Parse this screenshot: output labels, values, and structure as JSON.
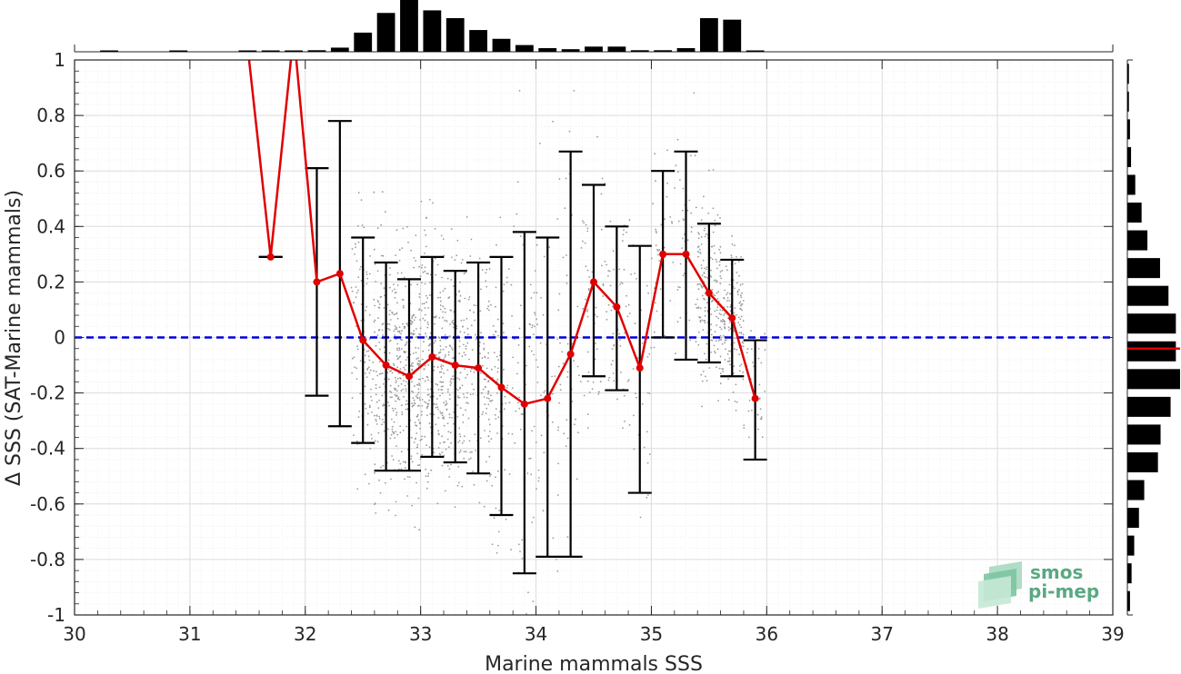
{
  "chart_data": {
    "type": "scatter",
    "title": "",
    "xlabel": "Marine mammals SSS",
    "ylabel": "Δ SSS (SAT-Marine mammals)",
    "xlim": [
      30,
      39
    ],
    "ylim": [
      -1,
      1
    ],
    "x_ticks": [
      "30",
      "31",
      "32",
      "33",
      "34",
      "35",
      "36",
      "37",
      "38",
      "39"
    ],
    "y_ticks": [
      "-1",
      "-0.8",
      "-0.6",
      "-0.4",
      "-0.2",
      "0",
      "0.2",
      "0.4",
      "0.6",
      "0.8",
      "1"
    ],
    "grid": true,
    "minor_grid": true,
    "reference_line": {
      "y": 0,
      "style": "dashed",
      "color": "#0000dd"
    },
    "colors": {
      "mean_line": "#e00000",
      "error_bars": "#000000",
      "scatter": "#9a9a9a",
      "histogram": "#000000",
      "logo": "#5aa882"
    },
    "series": [
      {
        "type": "line-errorbar",
        "x": [
          31.5,
          31.7,
          31.9,
          32.1,
          32.3,
          32.5,
          32.7,
          32.9,
          33.1,
          33.3,
          33.5,
          33.7,
          33.9,
          34.1,
          34.3,
          34.5,
          34.7,
          34.9,
          35.1,
          35.3,
          35.5,
          35.7,
          35.9
        ],
        "y": [
          1.05,
          0.29,
          1.1,
          0.2,
          0.23,
          -0.01,
          -0.1,
          -0.14,
          -0.07,
          -0.1,
          -0.11,
          -0.18,
          -0.24,
          -0.22,
          -0.06,
          0.2,
          0.11,
          -0.11,
          0.3,
          0.3,
          0.16,
          0.07,
          -0.22
        ],
        "y_low": [
          null,
          0.29,
          null,
          -0.21,
          -0.32,
          -0.38,
          -0.48,
          -0.48,
          -0.43,
          -0.45,
          -0.49,
          -0.64,
          -0.85,
          -0.79,
          -0.79,
          -0.14,
          -0.19,
          -0.56,
          0.0,
          -0.08,
          -0.09,
          -0.14,
          -0.44
        ],
        "y_high": [
          null,
          0.29,
          null,
          0.61,
          0.78,
          0.36,
          0.27,
          0.21,
          0.29,
          0.24,
          0.27,
          0.29,
          0.38,
          0.36,
          0.67,
          0.55,
          0.4,
          0.33,
          0.6,
          0.67,
          0.41,
          0.28,
          -0.01
        ]
      }
    ],
    "x_histogram": {
      "bin_centers": [
        30.3,
        30.9,
        31.5,
        31.7,
        31.9,
        32.1,
        32.3,
        32.5,
        32.7,
        32.9,
        33.1,
        33.3,
        33.5,
        33.7,
        33.9,
        34.1,
        34.3,
        34.5,
        34.7,
        34.9,
        35.1,
        35.3,
        35.5,
        35.7,
        35.9
      ],
      "relative_heights": [
        0.02,
        0.01,
        0.02,
        0.02,
        0.02,
        0.03,
        0.08,
        0.37,
        0.75,
        1.0,
        0.8,
        0.65,
        0.42,
        0.25,
        0.13,
        0.07,
        0.05,
        0.1,
        0.1,
        0.03,
        0.03,
        0.07,
        0.65,
        0.62,
        0.02
      ]
    },
    "y_histogram": {
      "bin_centers": [
        0.95,
        0.85,
        0.75,
        0.65,
        0.55,
        0.45,
        0.35,
        0.25,
        0.15,
        0.05,
        -0.05,
        -0.15,
        -0.25,
        -0.35,
        -0.45,
        -0.55,
        -0.65,
        -0.75,
        -0.85,
        -0.95
      ],
      "relative_widths": [
        0.03,
        0.03,
        0.05,
        0.07,
        0.15,
        0.27,
        0.38,
        0.62,
        0.78,
        0.92,
        0.92,
        1.0,
        0.82,
        0.63,
        0.58,
        0.32,
        0.22,
        0.13,
        0.08,
        0.05
      ],
      "median_marker": -0.04
    }
  },
  "logo": {
    "line1": "smos",
    "line2": "pi-mep"
  }
}
